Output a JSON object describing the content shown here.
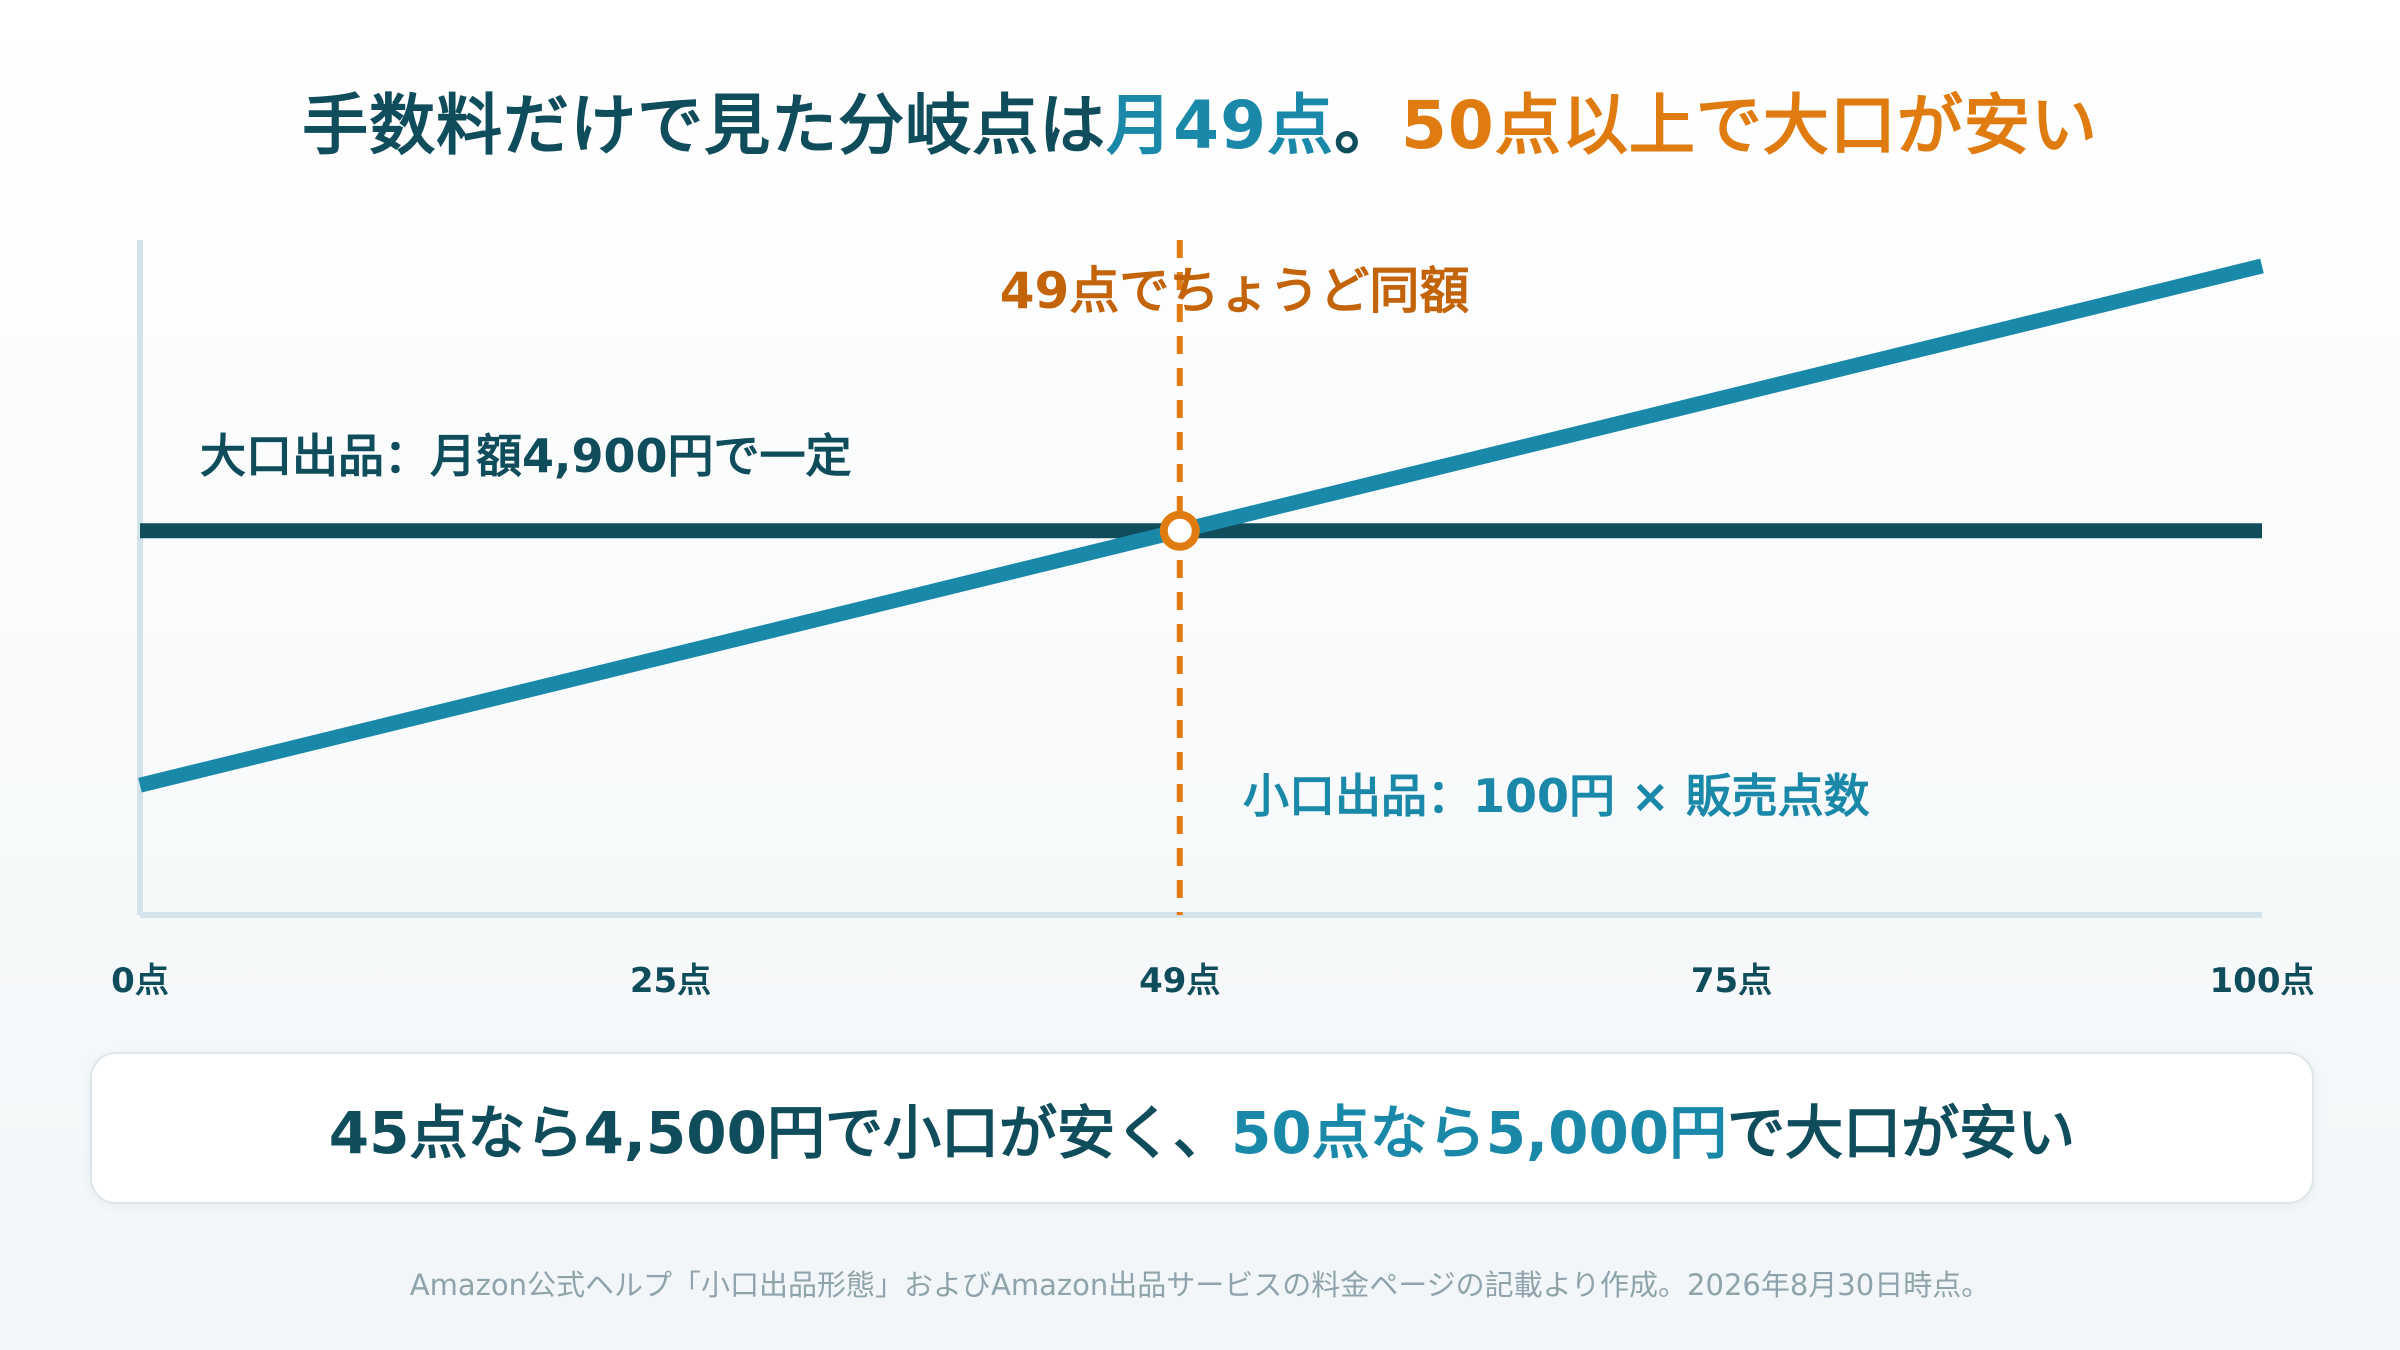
{
  "headline": {
    "part1": "手数料だけで見た分岐点は",
    "part2": "月49点",
    "part3": "。",
    "part4": "50点以上で大口が安い"
  },
  "chart_data": {
    "type": "line",
    "x_unit": "点",
    "xlim": [
      0,
      100
    ],
    "ylim": [
      -2500,
      10500
    ],
    "x_ticks": [
      "0点",
      "25点",
      "49点",
      "75点",
      "100点"
    ],
    "x_tick_values": [
      0,
      25,
      49,
      75,
      100
    ],
    "series": [
      {
        "name": "大口出品：月額4,900円で一定",
        "x": [
          0,
          100
        ],
        "y": [
          4900,
          4900
        ],
        "color": "#0f4c5c"
      },
      {
        "name": "小口出品：100円 × 販売点数",
        "x": [
          0,
          100
        ],
        "y": [
          0,
          10000
        ],
        "color": "#1a88a8"
      }
    ],
    "breakeven": {
      "x": 49,
      "y": 4900,
      "label": "49点でちょうど同額",
      "color": "#e07b10"
    }
  },
  "summary": {
    "part1": "45点なら4,500円で小口が安く、",
    "part2": "50点なら5,000円",
    "part3": "で大口が安い"
  },
  "footnote": "Amazon公式ヘルプ「小口出品形態」およびAmazon出品サービスの料金ページの記載より作成。2026年8月30日時点。",
  "colors": {
    "dark_teal": "#0f4c5c",
    "teal": "#1a88a8",
    "orange": "#e07b10",
    "axis": "#d4e2e9"
  }
}
